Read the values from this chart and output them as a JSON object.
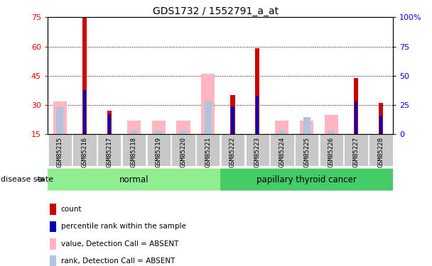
{
  "title": "GDS1732 / 1552791_a_at",
  "samples": [
    "GSM85215",
    "GSM85216",
    "GSM85217",
    "GSM85218",
    "GSM85219",
    "GSM85220",
    "GSM85221",
    "GSM85222",
    "GSM85223",
    "GSM85224",
    "GSM85225",
    "GSM85226",
    "GSM85227",
    "GSM85228"
  ],
  "count_present": [
    0,
    75,
    27,
    0,
    0,
    0,
    0,
    35,
    59,
    0,
    0,
    0,
    44,
    31
  ],
  "rank_present_pct": [
    0,
    38,
    17,
    0,
    0,
    0,
    0,
    24,
    33,
    0,
    0,
    0,
    28,
    16
  ],
  "count_absent": [
    32,
    0,
    0,
    22,
    22,
    22,
    46,
    0,
    0,
    22,
    22,
    25,
    0,
    0
  ],
  "rank_absent_pct": [
    23,
    0,
    0,
    3,
    3,
    3,
    29,
    0,
    0,
    3,
    15,
    3,
    0,
    0
  ],
  "groups": [
    {
      "label": "normal",
      "start": 0,
      "end": 7,
      "color": "#90EE90"
    },
    {
      "label": "papillary thyroid cancer",
      "start": 7,
      "end": 14,
      "color": "#44CC66"
    }
  ],
  "ylim_left": [
    15,
    75
  ],
  "ylim_right": [
    0,
    100
  ],
  "yticks_left": [
    15,
    30,
    45,
    60,
    75
  ],
  "yticks_right": [
    0,
    25,
    50,
    75,
    100
  ],
  "ytick_labels_right": [
    "0",
    "25",
    "50",
    "75",
    "100%"
  ],
  "color_count_present": "#CC0000",
  "color_rank_present": "#0000BB",
  "color_count_absent": "#FFB6C1",
  "color_rank_absent": "#B0C4DE",
  "disease_state_label": "disease state",
  "legend_items": [
    {
      "color": "#CC0000",
      "label": "count"
    },
    {
      "color": "#0000BB",
      "label": "percentile rank within the sample"
    },
    {
      "color": "#FFB6C1",
      "label": "value, Detection Call = ABSENT"
    },
    {
      "color": "#B0C4DE",
      "label": "rank, Detection Call = ABSENT"
    }
  ],
  "grid_yticks": [
    30,
    45,
    60
  ],
  "xticklabel_bg": "#C8C8C8",
  "bw_absent_count": 0.55,
  "bw_absent_rank": 0.28,
  "bw_present_count": 0.18,
  "bw_present_rank": 0.12
}
